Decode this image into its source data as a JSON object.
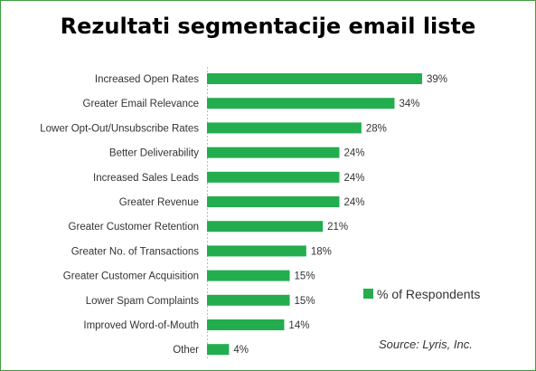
{
  "chart_data": {
    "type": "bar",
    "orientation": "horizontal",
    "title": "Rezultati segmentacije email liste",
    "categories": [
      "Increased Open Rates",
      "Greater Email Relevance",
      "Lower Opt-Out/Unsubscribe Rates",
      "Better Deliverability",
      "Increased Sales Leads",
      "Greater Revenue",
      "Greater Customer Retention",
      "Greater No. of Transactions",
      "Greater Customer Acquisition",
      "Lower Spam Complaints",
      "Improved Word-of-Mouth",
      "Other"
    ],
    "series": [
      {
        "name": "% of Respondents",
        "values": [
          39,
          34,
          28,
          24,
          24,
          24,
          21,
          18,
          15,
          15,
          14,
          4
        ],
        "value_labels": [
          "39%",
          "34%",
          "28%",
          "24%",
          "24%",
          "24%",
          "21%",
          "18%",
          "15%",
          "15%",
          "14%",
          "4%"
        ]
      }
    ],
    "xlim": [
      0,
      39
    ],
    "grid": false,
    "legend": "bottom-right",
    "bar_color": "#23ad4f",
    "annotations": [
      "Source: Lyris, Inc."
    ]
  }
}
